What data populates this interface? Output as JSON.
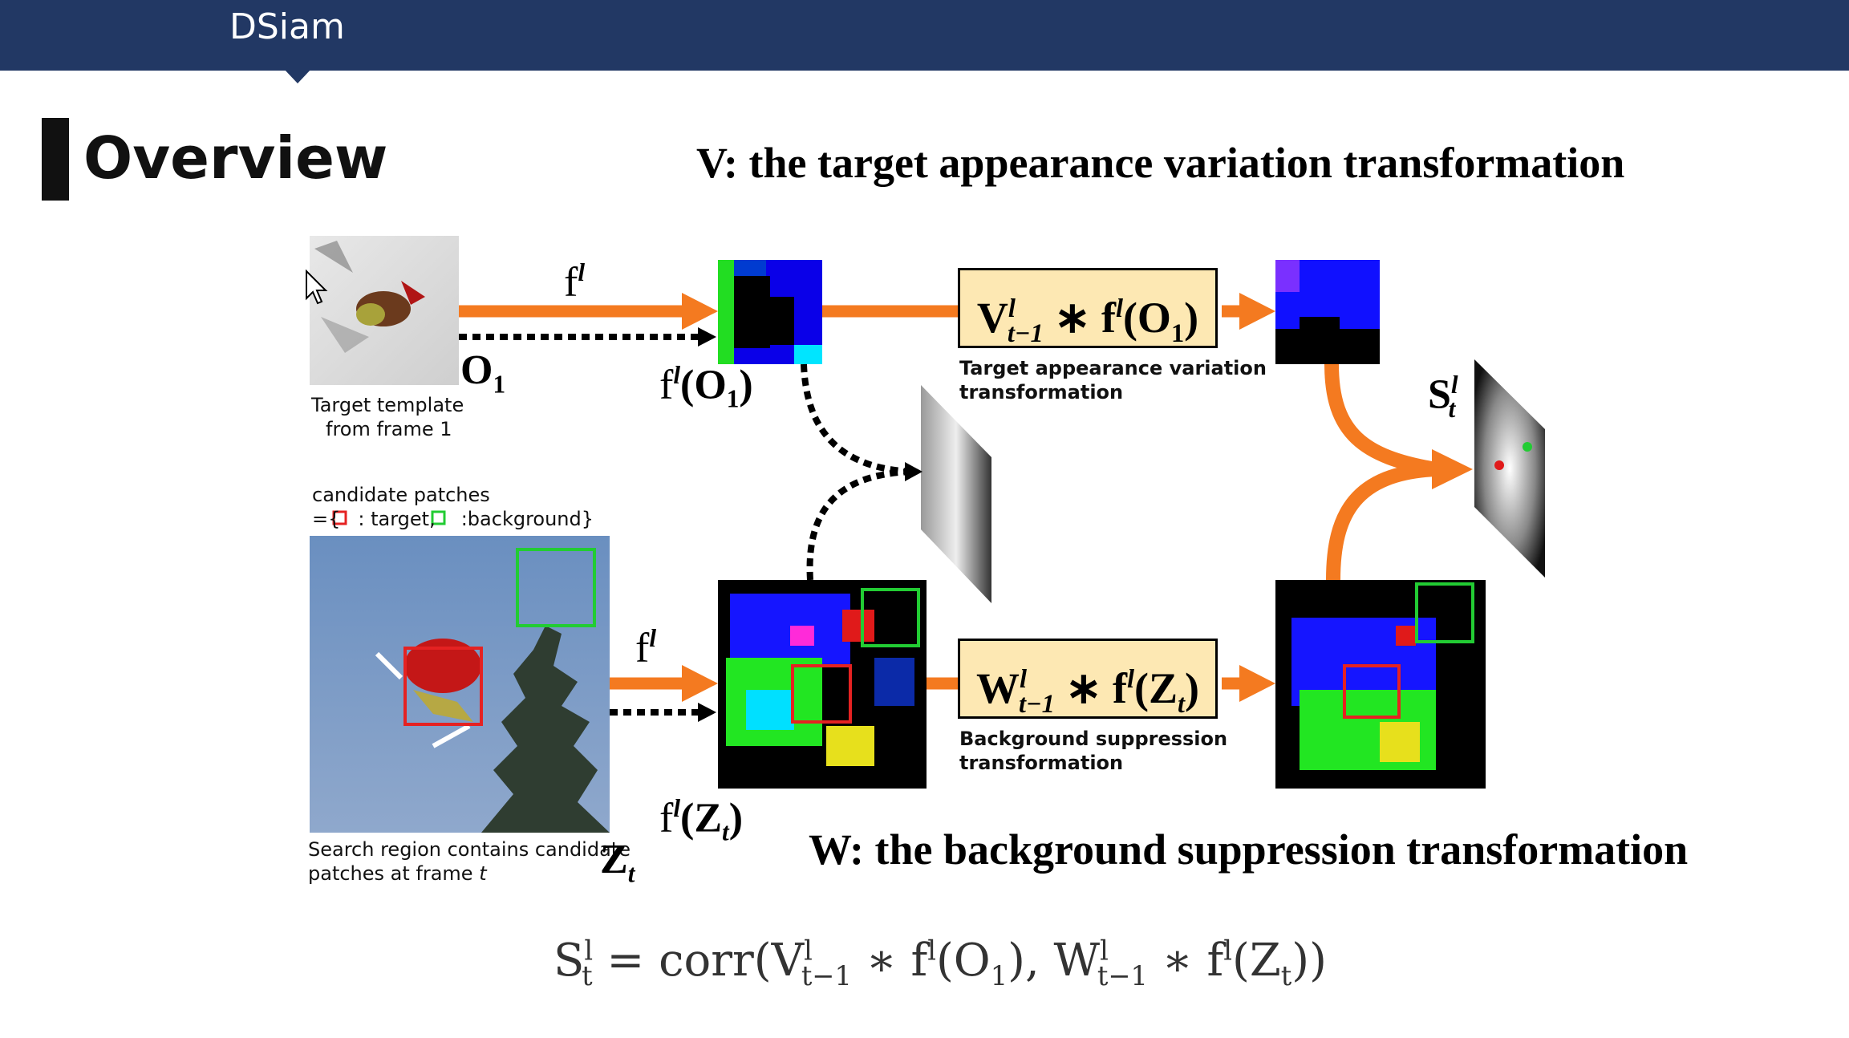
{
  "header": {
    "title": "DSiam"
  },
  "slide": {
    "heading": "Overview",
    "v_line": "V: the target appearance variation transformation",
    "w_line": "W: the background suppression transformation"
  },
  "diagram": {
    "template_caption": [
      "Target template",
      "from frame 1"
    ],
    "candidate_caption": [
      "candidate patches",
      "={",
      ": target,",
      ":background}"
    ],
    "search_caption": [
      "Search region contains candidate",
      "patches at frame "
    ],
    "search_caption_t": "t",
    "f_label": "f",
    "l_sup": "l",
    "O1": "O",
    "Zt": "Z",
    "one": "1",
    "t": "t",
    "t_minus_1": "t−1",
    "fO1": "f",
    "fZt": "f",
    "V": "V",
    "W": "W",
    "S": "S",
    "v_box_caption": [
      "Target appearance variation",
      "transformation"
    ],
    "w_box_caption": [
      "Background suppression",
      "transformation"
    ],
    "colors": {
      "arrow": "#f47a20",
      "box_fill": "#fde8b3",
      "header": "#223864",
      "target": "#e52222",
      "background": "#22cc33"
    }
  },
  "formula": {
    "S": "S",
    "sup_l": "l",
    "sub_t": "t",
    "eq": " = corr(V",
    "sup_l2": "l",
    "sub_t1": "t−1",
    "mid1": " ∗ f",
    "sup_l3": "l",
    "mid2": "(O",
    "sub_1": "1",
    "mid3": "), W",
    "sup_l4": "l",
    "sub_t1b": "t−1",
    "mid4": " ∗ f",
    "sup_l5": "l",
    "mid5": "(Z",
    "sub_t2": "t",
    "end": "))"
  }
}
